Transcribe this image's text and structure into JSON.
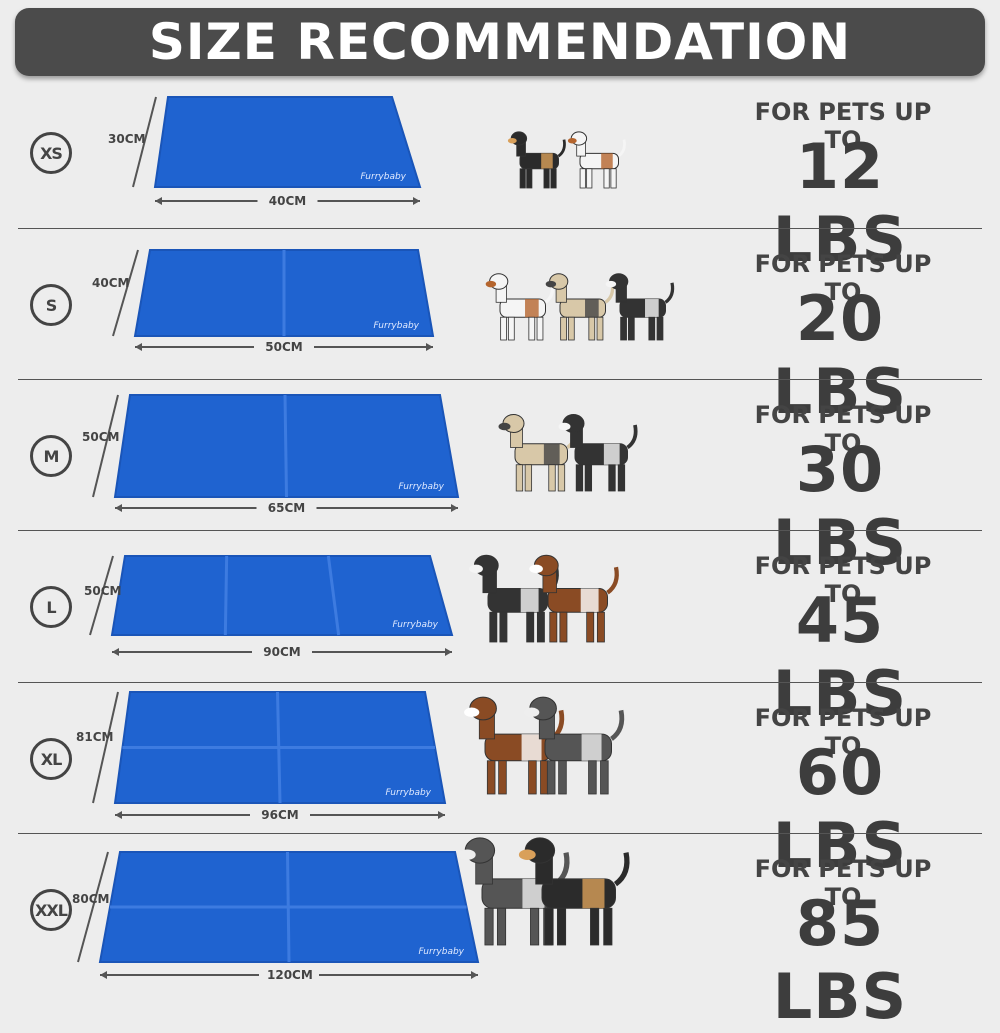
{
  "title": "SIZE RECOMMENDATION",
  "brand_logo": "Furrybaby",
  "colors": {
    "mat": "#1f63d0",
    "header": "#4b4b4b",
    "text": "#3d3d3d"
  },
  "sizes": [
    {
      "size": "XS",
      "height": "30CM",
      "width": "40CM",
      "for_pets": "FOR PETS UP TO",
      "weight": "12 LBS",
      "dogs": 2
    },
    {
      "size": "S",
      "height": "40CM",
      "width": "50CM",
      "for_pets": "FOR PETS UP TO",
      "weight": "20 LBS",
      "dogs": 3
    },
    {
      "size": "M",
      "height": "50CM",
      "width": "65CM",
      "for_pets": "FOR PETS UP TO",
      "weight": "30 LBS",
      "dogs": 2
    },
    {
      "size": "L",
      "height": "50CM",
      "width": "90CM",
      "for_pets": "FOR PETS UP TO",
      "weight": "45 LBS",
      "dogs": 2
    },
    {
      "size": "XL",
      "height": "81CM",
      "width": "96CM",
      "for_pets": "FOR PETS UP TO",
      "weight": "60 LBS",
      "dogs": 2
    },
    {
      "size": "XXL",
      "height": "80CM",
      "width": "120CM",
      "for_pets": "FOR PETS UP TO",
      "weight": "85 LBS",
      "dogs": 2
    }
  ]
}
